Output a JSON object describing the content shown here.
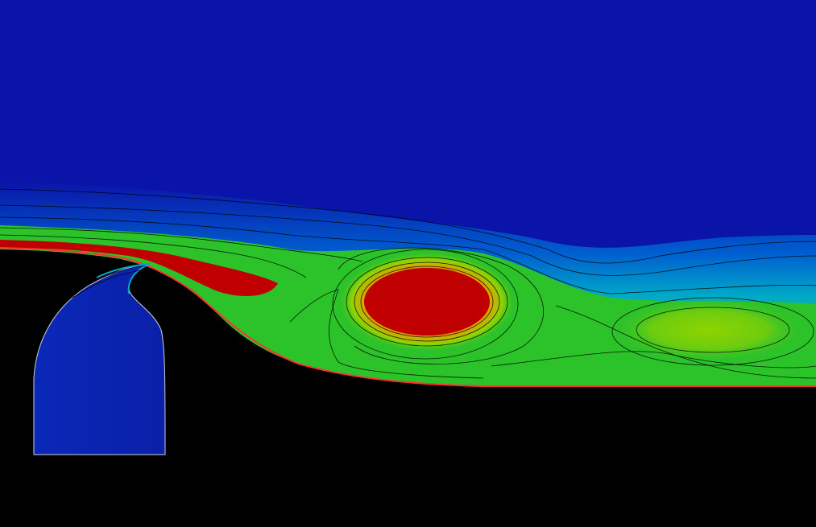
{
  "colors": {
    "background": "#000000",
    "free_stream": "#0a14a8",
    "cyan_band": "#00a9c8",
    "green": "#2cc22a",
    "yellow_green": "#8fd400",
    "red": "#c00000",
    "wall": "#000000",
    "wall_edge": "#ff3030",
    "contour_line": "#000000"
  },
  "scene": {
    "type": "cfd-contour-field",
    "colormap": [
      "#0a14a8",
      "#0060d0",
      "#00a9c8",
      "#20c070",
      "#2cc22a",
      "#8fd400",
      "#e0c000",
      "#c00000"
    ],
    "features": [
      "upstream-wall",
      "cavity",
      "ramp",
      "downstream-wall",
      "primary-vortex",
      "secondary-vortex",
      "shear-layer"
    ]
  }
}
